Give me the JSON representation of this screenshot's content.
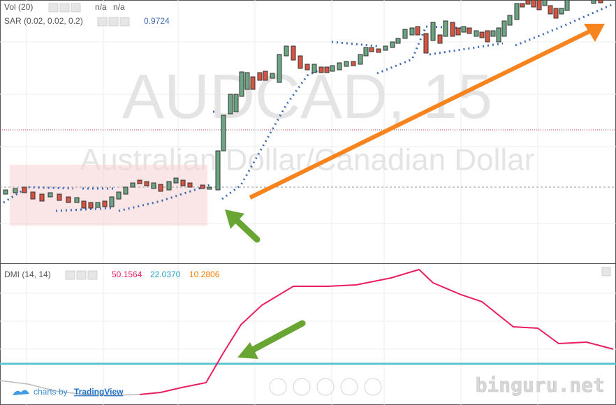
{
  "main_pane": {
    "indicators": [
      {
        "label": "Vol (20)",
        "values": [
          "n/a",
          "n/a"
        ]
      },
      {
        "label": "SAR (0.02, 0.02, 0.2)",
        "values": [
          "0.9724"
        ]
      }
    ],
    "watermark": {
      "symbol": "AUDCAD, 15",
      "description": "Australian Dollar/Canadian Dollar"
    }
  },
  "dmi_pane": {
    "label": "DMI (14, 14)",
    "values": [
      "50.1564",
      "22.0370",
      "10.2806"
    ]
  },
  "footer": {
    "prefix": "charts by",
    "brand": "TradingView"
  },
  "site": "binguru.net"
}
